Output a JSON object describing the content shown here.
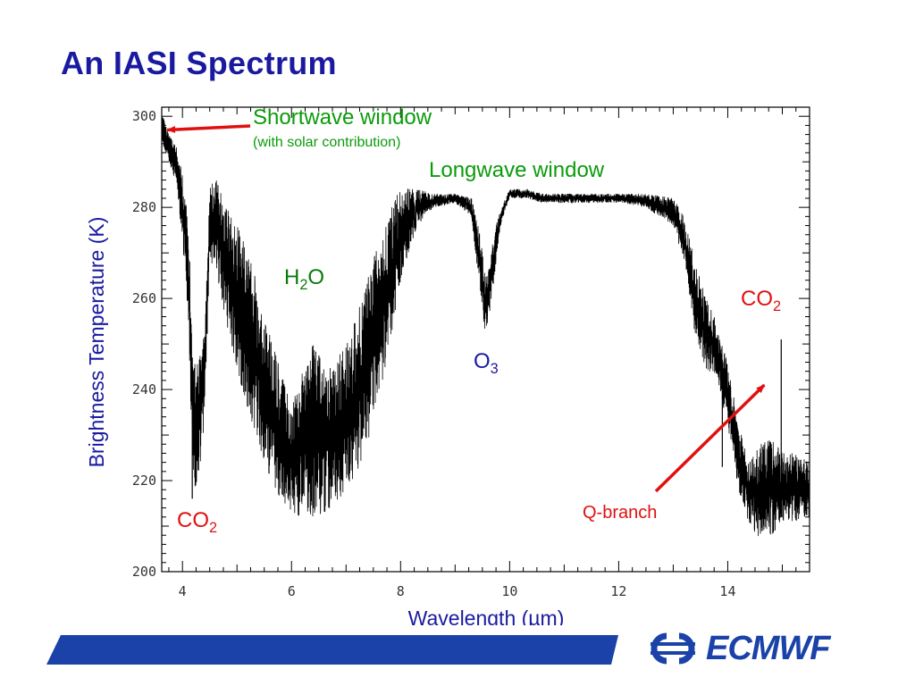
{
  "slide": {
    "title": "An IASI Spectrum",
    "logo_text": "ECMWF"
  },
  "colors": {
    "title": "#1a1aa0",
    "blue_label": "#1a1aa0",
    "green_label": "#0b9b0b",
    "red_label": "#e01010",
    "spectrum": "#000000",
    "footer": "#1a42a8"
  },
  "chart_data": {
    "type": "line",
    "title": "",
    "xlabel": "Wavelength (µm)",
    "ylabel": "Brightness Temperature (K)",
    "xlim": [
      3.62,
      15.5
    ],
    "ylim": [
      200,
      302
    ],
    "x_ticks": [
      4,
      6,
      8,
      10,
      12,
      14
    ],
    "y_ticks": [
      200,
      220,
      240,
      260,
      280,
      300
    ],
    "grid": false,
    "series": [
      {
        "name": "",
        "x": [
          3.62,
          3.75,
          3.9,
          4.05,
          4.13,
          4.18,
          4.23,
          4.3,
          4.4,
          4.5,
          4.62,
          4.8,
          5.0,
          5.2,
          5.4,
          5.6,
          5.8,
          6.0,
          6.2,
          6.4,
          6.6,
          6.8,
          7.0,
          7.2,
          7.4,
          7.6,
          7.8,
          8.0,
          8.3,
          8.6,
          9.0,
          9.3,
          9.45,
          9.55,
          9.65,
          9.75,
          9.85,
          10.0,
          10.3,
          10.6,
          11.0,
          11.5,
          12.0,
          12.5,
          13.0,
          13.2,
          13.4,
          13.6,
          13.75,
          13.85,
          14.0,
          14.2,
          14.4,
          14.6,
          14.8,
          15.0,
          15.2,
          15.5
        ],
        "upper": [
          301,
          296,
          293,
          284,
          270,
          250,
          246,
          246,
          252,
          285,
          286,
          280,
          276,
          270,
          262,
          252,
          244,
          236,
          244,
          250,
          245,
          246,
          250,
          256,
          265,
          272,
          280,
          284,
          284,
          283,
          283,
          282,
          275,
          265,
          270,
          276,
          280,
          284,
          284,
          283,
          283,
          283,
          283,
          283,
          282,
          278,
          268,
          260,
          256,
          253,
          246,
          232,
          224,
          228,
          229,
          226,
          226,
          224
        ],
        "lower": [
          294,
          290,
          285,
          266,
          247,
          224,
          218,
          221,
          232,
          268,
          266,
          255,
          245,
          235,
          228,
          221,
          216,
          213,
          212,
          212,
          213,
          215,
          218,
          222,
          228,
          238,
          250,
          264,
          276,
          280,
          281,
          278,
          262,
          252,
          258,
          268,
          277,
          282,
          282,
          281,
          281,
          281,
          281,
          280,
          276,
          268,
          252,
          244,
          244,
          240,
          232,
          218,
          210,
          207,
          208,
          211,
          211,
          212
        ]
      }
    ],
    "annotations": [
      {
        "id": "shortwave",
        "text": "Shortwave window",
        "sub": "(with solar contribution)",
        "color": "green",
        "arrow_to": [
          3.72,
          297
        ]
      },
      {
        "id": "longwave",
        "text": "Longwave window",
        "color": "green"
      },
      {
        "id": "h2o",
        "text": "H",
        "sub": "2",
        "tail": "O",
        "color": "darkgreen"
      },
      {
        "id": "o3",
        "text": "O",
        "sub": "3",
        "color": "blue"
      },
      {
        "id": "co2-left",
        "text": "CO",
        "sub": "2",
        "color": "red"
      },
      {
        "id": "co2-right",
        "text": "CO",
        "sub": "2",
        "color": "red"
      },
      {
        "id": "qbranch",
        "text": "Q-branch",
        "color": "red",
        "arrow_to": [
          14.67,
          241
        ]
      }
    ]
  }
}
